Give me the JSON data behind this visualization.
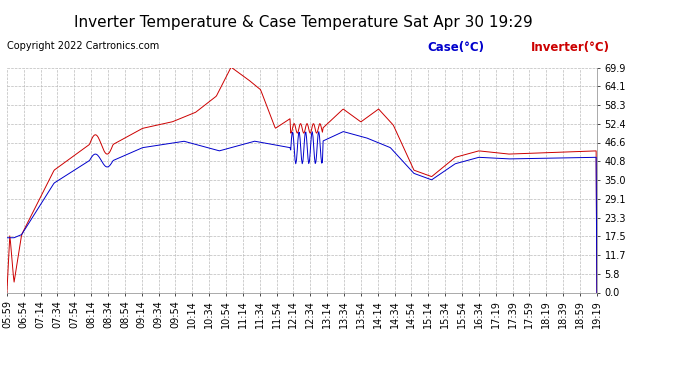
{
  "title": "Inverter Temperature & Case Temperature Sat Apr 30 19:29",
  "copyright": "Copyright 2022 Cartronics.com",
  "legend_case": "Case(°C)",
  "legend_inverter": "Inverter(°C)",
  "yticks": [
    0.0,
    5.8,
    11.7,
    17.5,
    23.3,
    29.1,
    35.0,
    40.8,
    46.6,
    52.4,
    58.3,
    64.1,
    69.9
  ],
  "ymin": 0.0,
  "ymax": 69.9,
  "xtick_labels": [
    "05:59",
    "06:54",
    "07:14",
    "07:34",
    "07:54",
    "08:14",
    "08:34",
    "08:54",
    "09:14",
    "09:34",
    "09:54",
    "10:14",
    "10:34",
    "10:54",
    "11:14",
    "11:34",
    "11:54",
    "12:14",
    "12:34",
    "13:14",
    "13:34",
    "13:54",
    "14:14",
    "14:34",
    "14:54",
    "15:14",
    "15:34",
    "15:54",
    "16:34",
    "17:19",
    "17:39",
    "17:59",
    "18:19",
    "18:39",
    "18:59",
    "19:19"
  ],
  "background_color": "#ffffff",
  "plot_bg_color": "#ffffff",
  "grid_color": "#bbbbbb",
  "case_color": "#0000cc",
  "inverter_color": "#cc0000",
  "title_fontsize": 11,
  "copyright_fontsize": 7,
  "axis_fontsize": 7
}
